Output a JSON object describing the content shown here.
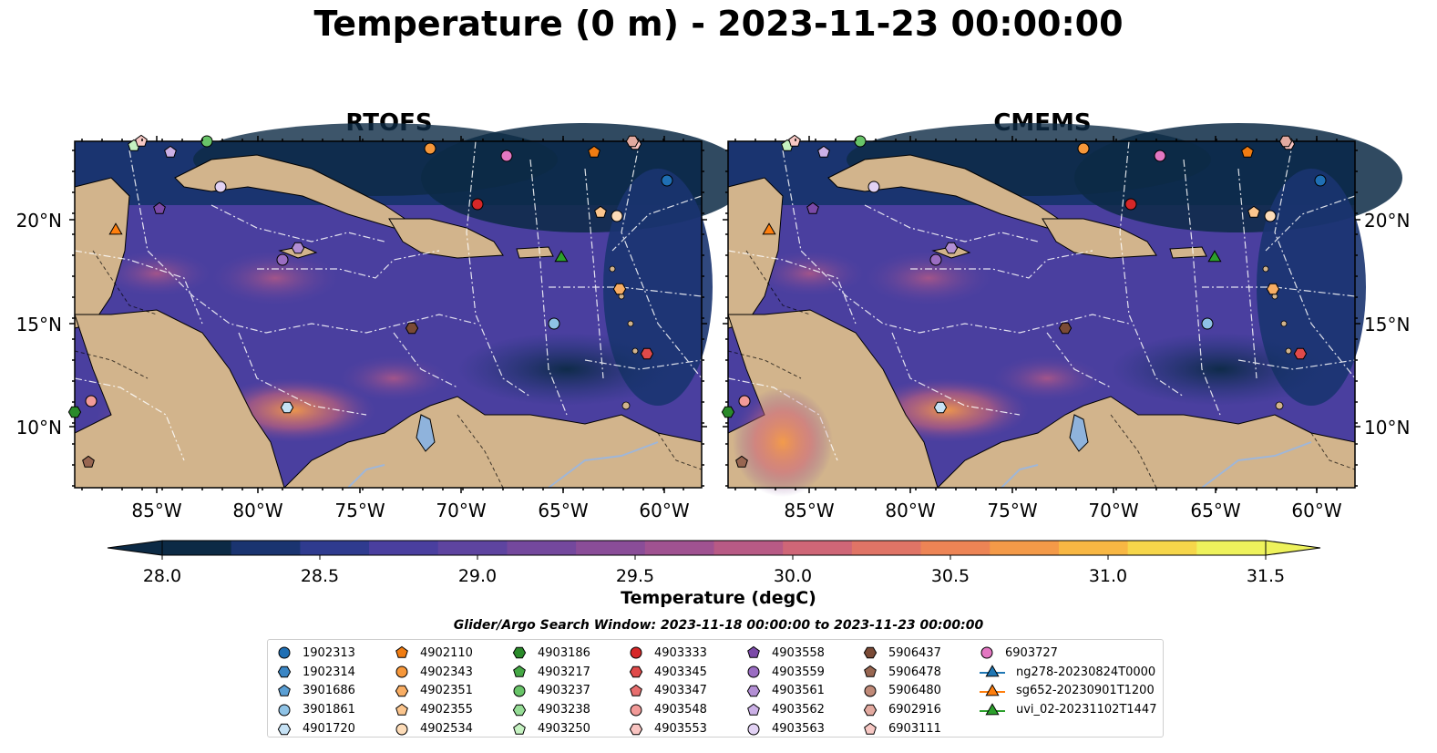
{
  "title": "Temperature (0 m) - 2023-11-23 00:00:00",
  "panels": [
    {
      "name": "RTOFS"
    },
    {
      "name": "CMEMS"
    }
  ],
  "lat_ticks": [
    "20°N",
    "15°N",
    "10°N"
  ],
  "lon_ticks": [
    "85°W",
    "80°W",
    "75°W",
    "70°W",
    "65°W",
    "60°W"
  ],
  "colorbar": {
    "label": "Temperature (degC)",
    "min": 28.0,
    "max": 31.5,
    "ticks": [
      "28.0",
      "28.5",
      "29.0",
      "29.5",
      "30.0",
      "30.5",
      "31.0",
      "31.5"
    ],
    "colors": [
      "#0c2a45",
      "#1a3470",
      "#2f3b8f",
      "#4a3f9f",
      "#5e44a0",
      "#74489d",
      "#8a4d98",
      "#a05291",
      "#b85a85",
      "#cf6677",
      "#e07466",
      "#ed8455",
      "#f49a48",
      "#f8b743",
      "#f6d64a",
      "#eef25c"
    ]
  },
  "legend": {
    "title": "Glider/Argo Search Window: 2023-11-18 00:00:00 to 2023-11-23 00:00:00",
    "columns": [
      [
        {
          "label": "1902313",
          "marker": "circle",
          "color": "#1f6fb4"
        },
        {
          "label": "1902314",
          "marker": "hexagon",
          "color": "#3b86c4"
        },
        {
          "label": "3901686",
          "marker": "pentagon",
          "color": "#5a9fd4"
        },
        {
          "label": "3901861",
          "marker": "circle",
          "color": "#8fc3e6"
        },
        {
          "label": "4901720",
          "marker": "hexagon",
          "color": "#c6e2f5"
        }
      ],
      [
        {
          "label": "4902110",
          "marker": "pentagon",
          "color": "#f07c12"
        },
        {
          "label": "4902343",
          "marker": "circle",
          "color": "#f6973a"
        },
        {
          "label": "4902351",
          "marker": "hexagon",
          "color": "#f8ad63"
        },
        {
          "label": "4902355",
          "marker": "pentagon",
          "color": "#fbc58d"
        },
        {
          "label": "4902534",
          "marker": "circle",
          "color": "#fddcb8"
        }
      ],
      [
        {
          "label": "4903186",
          "marker": "hexagon",
          "color": "#2a8a2a"
        },
        {
          "label": "4903217",
          "marker": "pentagon",
          "color": "#45a845"
        },
        {
          "label": "4903237",
          "marker": "circle",
          "color": "#68c468"
        },
        {
          "label": "4903238",
          "marker": "hexagon",
          "color": "#95dc95"
        },
        {
          "label": "4903250",
          "marker": "pentagon",
          "color": "#c5f2c1"
        }
      ],
      [
        {
          "label": "4903333",
          "marker": "circle",
          "color": "#d62728"
        },
        {
          "label": "4903345",
          "marker": "hexagon",
          "color": "#e04a4a"
        },
        {
          "label": "4903347",
          "marker": "pentagon",
          "color": "#e86f6f"
        },
        {
          "label": "4903548",
          "marker": "circle",
          "color": "#f29a98"
        },
        {
          "label": "4903553",
          "marker": "hexagon",
          "color": "#f9c4c1"
        }
      ],
      [
        {
          "label": "4903558",
          "marker": "pentagon",
          "color": "#7b4aa8"
        },
        {
          "label": "4903559",
          "marker": "circle",
          "color": "#9a6dc2"
        },
        {
          "label": "4903561",
          "marker": "hexagon",
          "color": "#b38fd4"
        },
        {
          "label": "4903562",
          "marker": "pentagon",
          "color": "#cbb0e6"
        },
        {
          "label": "4903563",
          "marker": "circle",
          "color": "#e2d2f4"
        }
      ],
      [
        {
          "label": "5906437",
          "marker": "hexagon",
          "color": "#7a4a36"
        },
        {
          "label": "5906478",
          "marker": "pentagon",
          "color": "#986651"
        },
        {
          "label": "5906480",
          "marker": "circle",
          "color": "#c08a78"
        },
        {
          "label": "6902916",
          "marker": "hexagon",
          "color": "#e3aaa0"
        },
        {
          "label": "6903111",
          "marker": "pentagon",
          "color": "#f7c8c4"
        }
      ],
      [
        {
          "label": "6903727",
          "marker": "circle",
          "color": "#e377c2"
        },
        {
          "label": "ng278-20230824T0000",
          "marker": "triangle-line",
          "color": "#1f77b4"
        },
        {
          "label": "sg652-20230901T1200",
          "marker": "triangle-line",
          "color": "#ff7f0e"
        },
        {
          "label": "uvi_02-20231102T1447",
          "marker": "triangle-line",
          "color": "#2ca02c"
        }
      ]
    ]
  }
}
